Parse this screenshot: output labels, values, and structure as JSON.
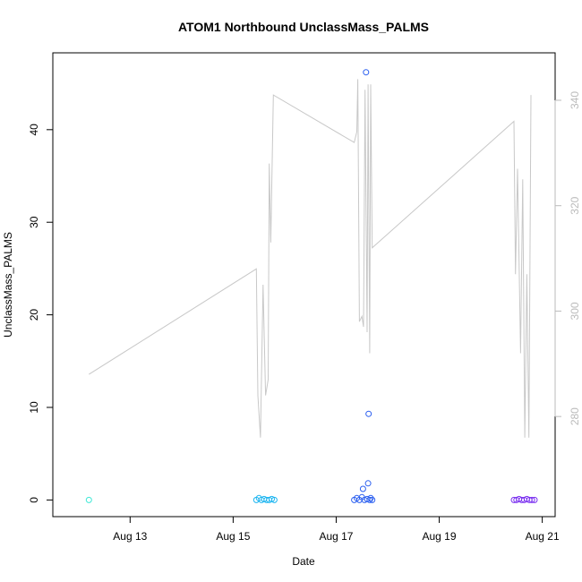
{
  "chart_data": {
    "type": "scatter",
    "title": "ATOM1 Northbound UnclassMass_PALMS",
    "xlabel": "Date",
    "ylabel": "UnclassMass_PALMS",
    "x_ticks": [
      "Aug 13",
      "Aug 15",
      "Aug 17",
      "Aug 19",
      "Aug 21"
    ],
    "x_tick_days": [
      13,
      15,
      17,
      19,
      21
    ],
    "xlim_days": [
      11.5,
      21.25
    ],
    "ylim": [
      -1.8,
      48.3
    ],
    "y_ticks": [
      0,
      10,
      20,
      30,
      40
    ],
    "y2lim": [
      261,
      349
    ],
    "y2_ticks": [
      280,
      300,
      320,
      340
    ],
    "colors": {
      "axis": "#000000",
      "secondary_axis": "#bbbbbb",
      "line": "#c8c8c8"
    },
    "series": [
      {
        "color": "#3ee8d6",
        "points": [
          [
            12.2,
            0
          ]
        ]
      },
      {
        "color": "#1ab4f0",
        "points": [
          [
            15.45,
            0
          ],
          [
            15.5,
            0.2
          ],
          [
            15.55,
            0
          ],
          [
            15.6,
            0.1
          ],
          [
            15.65,
            0
          ],
          [
            15.7,
            0
          ],
          [
            15.75,
            0.1
          ],
          [
            15.8,
            0
          ]
        ]
      },
      {
        "color": "#2a5ef0",
        "points": [
          [
            17.35,
            0
          ],
          [
            17.4,
            0.2
          ],
          [
            17.45,
            0
          ],
          [
            17.5,
            0.3
          ],
          [
            17.52,
            1.2
          ],
          [
            17.55,
            0
          ],
          [
            17.58,
            46.2
          ],
          [
            17.6,
            0.1
          ],
          [
            17.62,
            1.8
          ],
          [
            17.63,
            9.3
          ],
          [
            17.65,
            0
          ],
          [
            17.67,
            0.2
          ],
          [
            17.7,
            0
          ]
        ]
      },
      {
        "color": "#7a30f0",
        "points": [
          [
            20.45,
            0
          ],
          [
            20.5,
            0
          ],
          [
            20.55,
            0.1
          ],
          [
            20.6,
            0
          ],
          [
            20.65,
            0
          ],
          [
            20.7,
            0.1
          ],
          [
            20.75,
            0
          ],
          [
            20.8,
            0
          ],
          [
            20.85,
            0
          ]
        ]
      }
    ],
    "secondary_line": {
      "x": [
        12.2,
        15.45,
        15.48,
        15.53,
        15.58,
        15.63,
        15.68,
        15.7,
        15.73,
        15.78,
        17.35,
        17.4,
        17.42,
        17.45,
        17.5,
        17.53,
        17.56,
        17.6,
        17.62,
        17.65,
        17.67,
        17.7,
        20.45,
        20.48,
        20.52,
        20.58,
        20.62,
        20.66,
        20.7,
        20.74,
        20.78
      ],
      "y": [
        288,
        308,
        284,
        276,
        305,
        284,
        287,
        328,
        313,
        341,
        332,
        334,
        344,
        298,
        299,
        297,
        342,
        296,
        343,
        292,
        343,
        312,
        336,
        307,
        327,
        292,
        325,
        276,
        307,
        276,
        341
      ]
    }
  }
}
